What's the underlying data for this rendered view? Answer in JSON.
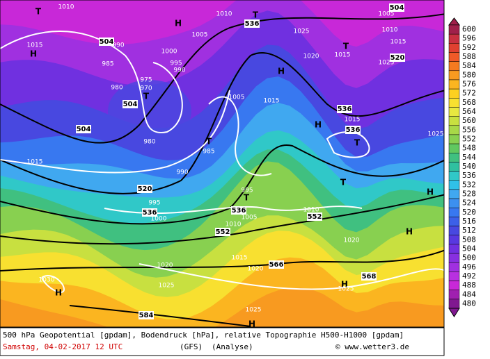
{
  "map_labels": [
    "1010",
    "T",
    "1015",
    "H",
    "504",
    "990",
    "985",
    "980",
    "975",
    "970",
    "T",
    "504",
    "1000",
    "995",
    "990",
    "H",
    "1005",
    "1010",
    "T",
    "536",
    "1025",
    "1005",
    "1015",
    "H",
    "1020",
    "504",
    "980",
    "T",
    "985",
    "990",
    "1015",
    "520",
    "995",
    "T",
    "995",
    "536",
    "1000",
    "536",
    "1005",
    "1010",
    "552",
    "1010",
    "552",
    "1020",
    "H",
    "536",
    "1015",
    "536",
    "T",
    "T",
    "1005",
    "504",
    "1010",
    "1015",
    "T",
    "520",
    "1025",
    "1015",
    "1025",
    "H",
    "H",
    "1030",
    "H",
    "1020",
    "1025",
    "1015",
    "1020",
    "566",
    "568",
    "H",
    "1025",
    "1025",
    "584",
    "H"
  ],
  "colorbar": {
    "ticks": [
      600,
      596,
      592,
      588,
      584,
      580,
      576,
      572,
      568,
      564,
      560,
      556,
      552,
      548,
      544,
      540,
      536,
      532,
      528,
      524,
      520,
      516,
      512,
      508,
      504,
      500,
      496,
      492,
      488,
      484,
      480
    ],
    "colors": [
      "#a0204a",
      "#c83040",
      "#e04030",
      "#f05a28",
      "#f57a20",
      "#f89a20",
      "#fbb520",
      "#fdd020",
      "#f8e030",
      "#e8e840",
      "#c8e040",
      "#a8d848",
      "#88d050",
      "#60c860",
      "#40c080",
      "#30c0a0",
      "#30c8c8",
      "#30c0e8",
      "#40a8f0",
      "#3c90f0",
      "#3878f0",
      "#3c60e8",
      "#4848e0",
      "#5838e0",
      "#7030e0",
      "#8830e0",
      "#a030e0",
      "#b830e0",
      "#c828d8",
      "#a020b0",
      "#801890"
    ]
  },
  "footer": {
    "description": "500 hPa Geopotential [gpdam], Bodendruck [hPa], relative Topographie H500-H1000 [gpdam]",
    "date": "Samstag, 04-02-2017  12 UTC",
    "model": "(GFS)",
    "run": "(Analyse)",
    "copyright": "© www.wetter3.de"
  }
}
